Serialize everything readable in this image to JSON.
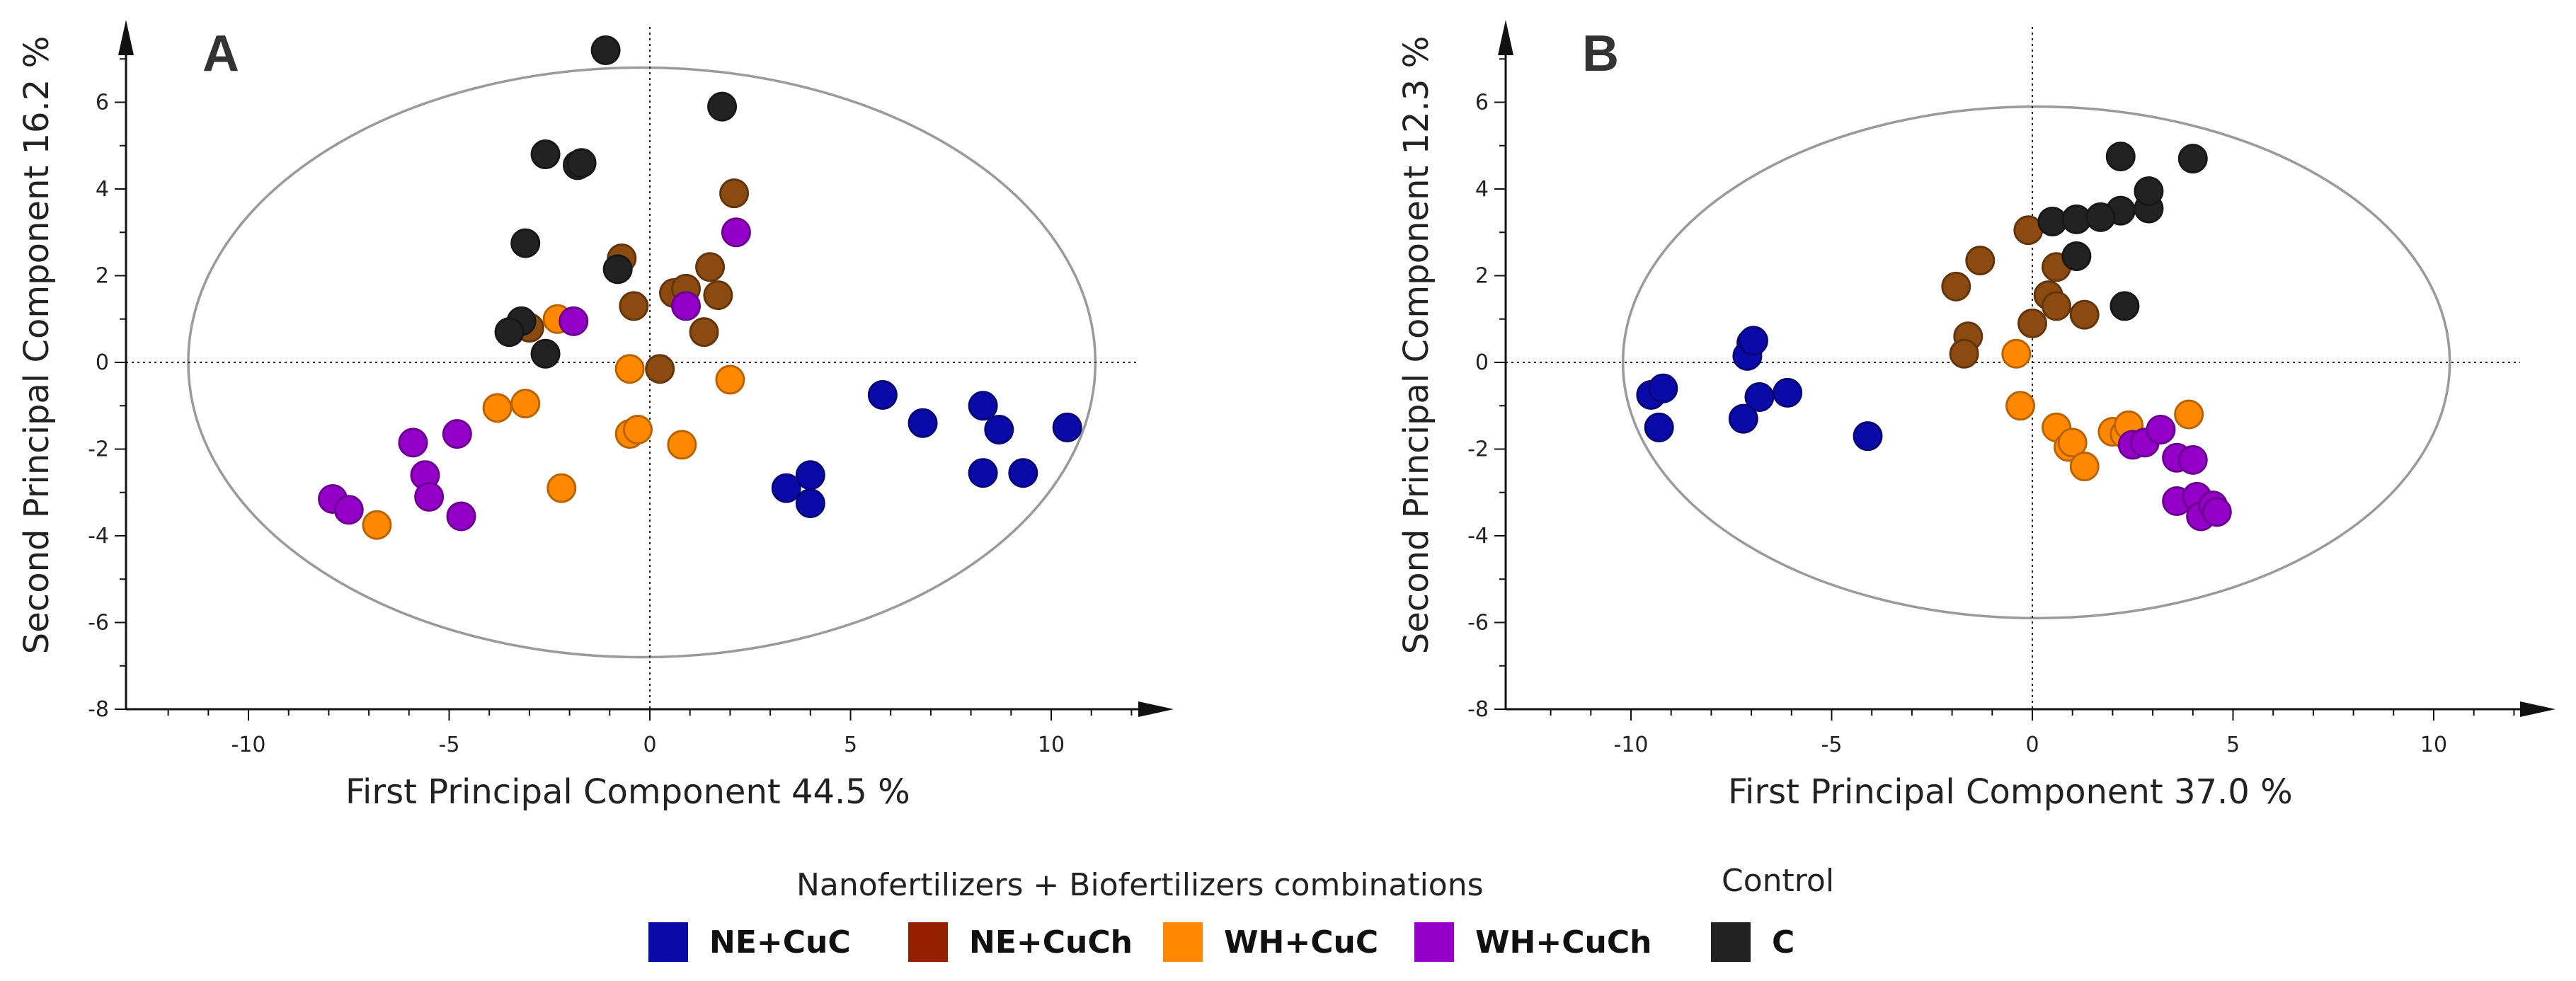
{
  "chart_data": [
    {
      "type": "scatter",
      "panel_label": "A",
      "xlabel": "First Principal Component 44.5 %",
      "ylabel": "Second Principal Component 16.2 %",
      "xlim": [
        -13,
        13
      ],
      "ylim": [
        -8,
        8
      ],
      "x_ticks": [
        -10,
        -5,
        0,
        5,
        10
      ],
      "y_ticks": [
        -8,
        -6,
        -4,
        -2,
        0,
        2,
        4,
        6
      ],
      "confidence_ellipse": {
        "cx": -0.2,
        "cy": 0.0,
        "rx": 11.3,
        "ry": 6.8
      },
      "reference_lines": {
        "x": 0,
        "y": 0
      },
      "series": [
        {
          "name": "NE+CuC",
          "color": "#0a0aa8",
          "points": [
            [
              5.8,
              -0.75
            ],
            [
              6.8,
              -1.4
            ],
            [
              8.3,
              -1.0
            ],
            [
              8.7,
              -1.55
            ],
            [
              10.4,
              -1.5
            ],
            [
              8.3,
              -2.55
            ],
            [
              9.3,
              -2.55
            ],
            [
              3.4,
              -2.9
            ],
            [
              4.0,
              -2.6
            ],
            [
              4.0,
              -3.25
            ]
          ]
        },
        {
          "name": "NE+CuCh",
          "color": "#8a4a10",
          "points": [
            [
              -0.7,
              2.4
            ],
            [
              -0.4,
              1.3
            ],
            [
              0.6,
              1.6
            ],
            [
              0.9,
              1.7
            ],
            [
              1.5,
              2.2
            ],
            [
              1.7,
              1.55
            ],
            [
              2.1,
              3.9
            ],
            [
              1.35,
              0.7
            ],
            [
              0.25,
              -0.15
            ],
            [
              -3.0,
              0.8
            ]
          ]
        },
        {
          "name": "WH+CuC",
          "color": "#ff8800",
          "points": [
            [
              -2.3,
              1.0
            ],
            [
              -3.1,
              -0.95
            ],
            [
              -3.8,
              -1.05
            ],
            [
              -0.5,
              -0.15
            ],
            [
              -0.5,
              -1.65
            ],
            [
              -0.3,
              -1.55
            ],
            [
              0.8,
              -1.9
            ],
            [
              2.0,
              -0.4
            ],
            [
              -2.2,
              -2.9
            ],
            [
              -6.8,
              -3.75
            ]
          ]
        },
        {
          "name": "WH+CuCh",
          "color": "#9400c8",
          "points": [
            [
              2.15,
              3.0
            ],
            [
              0.9,
              1.3
            ],
            [
              -1.9,
              0.95
            ],
            [
              -5.9,
              -1.85
            ],
            [
              -4.8,
              -1.65
            ],
            [
              -5.6,
              -2.6
            ],
            [
              -5.5,
              -3.1
            ],
            [
              -4.7,
              -3.55
            ],
            [
              -7.9,
              -3.15
            ],
            [
              -7.5,
              -3.4
            ]
          ]
        },
        {
          "name": "C",
          "color": "#222222",
          "points": [
            [
              -1.1,
              7.2
            ],
            [
              1.8,
              5.9
            ],
            [
              -2.6,
              4.8
            ],
            [
              -1.8,
              4.55
            ],
            [
              -1.7,
              4.6
            ],
            [
              -3.1,
              2.75
            ],
            [
              -0.8,
              2.15
            ],
            [
              -3.2,
              0.95
            ],
            [
              -3.5,
              0.7
            ],
            [
              -2.6,
              0.2
            ]
          ]
        }
      ]
    },
    {
      "type": "scatter",
      "panel_label": "B",
      "xlabel": "First Principal Component 37.0 %",
      "ylabel": "Second Principal Component 12.3 %",
      "xlim": [
        -13,
        13
      ],
      "ylim": [
        -8,
        8
      ],
      "x_ticks": [
        -10,
        -5,
        0,
        5,
        10
      ],
      "y_ticks": [
        -8,
        -6,
        -4,
        -2,
        0,
        2,
        4,
        6
      ],
      "confidence_ellipse": {
        "cx": 0.1,
        "cy": 0.0,
        "rx": 10.3,
        "ry": 5.9
      },
      "reference_lines": {
        "x": 0,
        "y": 0
      },
      "series": [
        {
          "name": "NE+CuC",
          "color": "#0a0aa8",
          "points": [
            [
              -7.0,
              0.45
            ],
            [
              -7.1,
              0.15
            ],
            [
              -9.5,
              -0.75
            ],
            [
              -9.2,
              -0.6
            ],
            [
              -9.3,
              -1.5
            ],
            [
              -6.8,
              -0.8
            ],
            [
              -6.1,
              -0.7
            ],
            [
              -7.2,
              -1.3
            ],
            [
              -4.1,
              -1.7
            ],
            [
              -6.95,
              0.5
            ]
          ]
        },
        {
          "name": "NE+CuCh",
          "color": "#8a4a10",
          "points": [
            [
              -0.1,
              3.05
            ],
            [
              -1.3,
              2.35
            ],
            [
              -1.9,
              1.75
            ],
            [
              0.4,
              1.55
            ],
            [
              0.6,
              2.2
            ],
            [
              0.6,
              1.3
            ],
            [
              1.3,
              1.1
            ],
            [
              -1.6,
              0.6
            ],
            [
              -1.7,
              0.2
            ],
            [
              0.0,
              0.9
            ]
          ]
        },
        {
          "name": "WH+CuC",
          "color": "#ff8800",
          "points": [
            [
              -0.4,
              0.2
            ],
            [
              -0.3,
              -1.0
            ],
            [
              0.6,
              -1.5
            ],
            [
              0.9,
              -1.95
            ],
            [
              1.0,
              -1.85
            ],
            [
              1.3,
              -2.4
            ],
            [
              2.0,
              -1.6
            ],
            [
              2.3,
              -1.65
            ],
            [
              2.4,
              -1.45
            ],
            [
              3.9,
              -1.2
            ]
          ]
        },
        {
          "name": "WH+CuCh",
          "color": "#9400c8",
          "points": [
            [
              2.5,
              -1.9
            ],
            [
              2.8,
              -1.85
            ],
            [
              3.2,
              -1.55
            ],
            [
              3.6,
              -2.2
            ],
            [
              4.0,
              -2.25
            ],
            [
              3.6,
              -3.2
            ],
            [
              4.1,
              -3.1
            ],
            [
              4.2,
              -3.55
            ],
            [
              4.5,
              -3.3
            ],
            [
              4.6,
              -3.45
            ]
          ]
        },
        {
          "name": "C",
          "color": "#222222",
          "points": [
            [
              0.5,
              3.25
            ],
            [
              1.1,
              2.45
            ],
            [
              1.1,
              3.3
            ],
            [
              2.2,
              4.75
            ],
            [
              2.2,
              3.5
            ],
            [
              2.9,
              3.55
            ],
            [
              2.9,
              3.95
            ],
            [
              4.0,
              4.7
            ],
            [
              2.3,
              1.3
            ],
            [
              1.7,
              3.35
            ]
          ]
        }
      ]
    }
  ],
  "legend": {
    "combinations_heading": "Nanofertilizers + Biofertilizers combinations",
    "control_heading": "Control",
    "items": [
      {
        "label": "NE+CuC",
        "color": "#0a0aa8"
      },
      {
        "label": "NE+CuCh",
        "color": "#952000"
      },
      {
        "label": "WH+CuC",
        "color": "#ff8800"
      },
      {
        "label": "WH+CuCh",
        "color": "#9400c8"
      },
      {
        "label": "C",
        "color": "#222222"
      }
    ]
  }
}
